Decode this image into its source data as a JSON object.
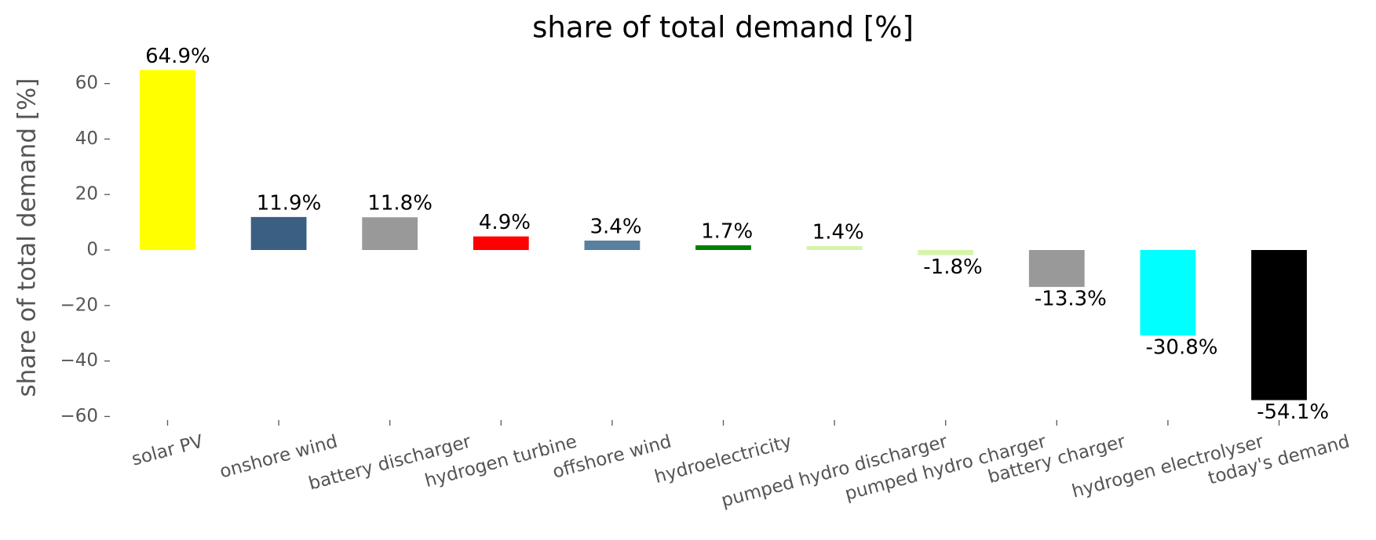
{
  "chart_data": {
    "type": "bar",
    "title": "share of total demand [%]",
    "y_label": "share of total demand [%]",
    "categories": [
      "solar PV",
      "onshore wind",
      "battery discharger",
      "hydrogen turbine",
      "offshore wind",
      "hydroelectricity",
      "pumped hydro discharger",
      "pumped hydro charger",
      "battery charger",
      "hydrogen electrolyser",
      "today's demand"
    ],
    "values": [
      64.9,
      11.9,
      11.8,
      4.9,
      3.4,
      1.7,
      1.4,
      -1.8,
      -13.3,
      -30.8,
      -54.1
    ],
    "value_labels": [
      "64.9%",
      "11.9%",
      "11.8%",
      "4.9%",
      "3.4%",
      "1.7%",
      "1.4%",
      "-1.8%",
      "-13.3%",
      "-30.8%",
      "-54.1%"
    ],
    "colors": [
      "#ffff00",
      "#3b5f82",
      "#999999",
      "#ff0000",
      "#5a7f9f",
      "#008000",
      "#d4f5a8",
      "#d4f5a8",
      "#999999",
      "#00ffff",
      "#000000"
    ],
    "ylim": [
      -62,
      68
    ],
    "yticks": [
      {
        "value": -60,
        "label": "−60"
      },
      {
        "value": -40,
        "label": "−40"
      },
      {
        "value": -20,
        "label": "−20"
      },
      0,
      20,
      40,
      60
    ],
    "grid": false
  }
}
